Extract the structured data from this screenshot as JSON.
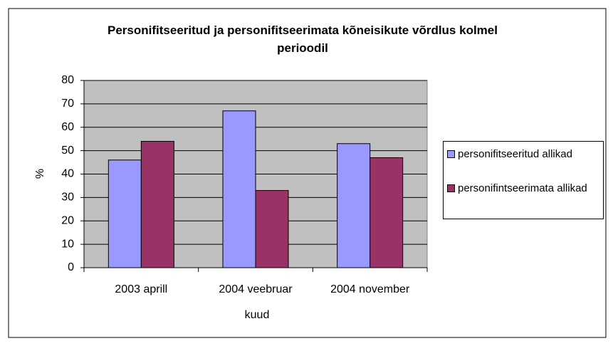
{
  "chart_data": {
    "type": "bar",
    "title": "Personifitseeritud ja personifitseerimata kõneisikute võrdlus kolmel perioodil",
    "categories": [
      "2003 aprill",
      "2004 veebruar",
      "2004 november"
    ],
    "series": [
      {
        "name": "personifitseeritud allikad",
        "color": "#9999ff",
        "values": [
          46,
          67,
          53
        ]
      },
      {
        "name": "personifintseerimata allikad",
        "color": "#993366",
        "values": [
          54,
          33,
          47
        ]
      }
    ],
    "xlabel": "kuud",
    "ylabel": "%",
    "ylim": [
      0,
      80
    ],
    "yticks": [
      0,
      10,
      20,
      30,
      40,
      50,
      60,
      70,
      80
    ],
    "grid": true,
    "legend": "right",
    "plot_background": "#c0c0c0"
  }
}
